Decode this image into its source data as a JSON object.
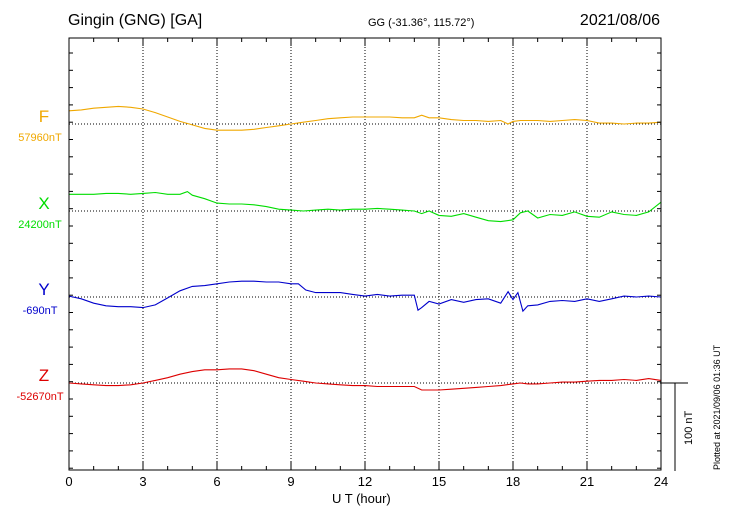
{
  "header": {
    "station": "Gingin (GNG)  [GA]",
    "coords": "GG (-31.36°, 115.72°)",
    "date": "2021/08/06"
  },
  "plotted_note": "Plotted at 2021/09/06 01:36 UT",
  "scale_label": "100 nT",
  "chart_data": {
    "type": "line",
    "xlabel": "U T (hour)",
    "xlim": [
      0,
      24
    ],
    "xticks": [
      0,
      3,
      6,
      9,
      12,
      15,
      18,
      21,
      24
    ],
    "grid": true,
    "scale_bar_nT": 100,
    "series": [
      {
        "name": "F",
        "baseline_label": "57960nT",
        "baseline_nT": 57960,
        "color": "#f0a800",
        "x": [
          0,
          0.5,
          1,
          1.5,
          2,
          2.5,
          3,
          3.5,
          4,
          4.5,
          5,
          5.5,
          6,
          6.5,
          7,
          7.5,
          8,
          8.5,
          9,
          9.5,
          10,
          10.5,
          11,
          11.5,
          12,
          12.5,
          13,
          13.5,
          14,
          14.3,
          14.6,
          15,
          15.5,
          16,
          16.5,
          17,
          17.5,
          17.8,
          18,
          18.3,
          18.6,
          19,
          19.5,
          20,
          20.5,
          21,
          21.5,
          22,
          22.5,
          23,
          23.5,
          24
        ],
        "offsets_nT": [
          15,
          16,
          18,
          19,
          20,
          19,
          17,
          13,
          8,
          3,
          -1,
          -5,
          -7,
          -7,
          -7,
          -6,
          -4,
          -2,
          0,
          2,
          4,
          6,
          7,
          8,
          8,
          8,
          8,
          7,
          7,
          10,
          7,
          7,
          5,
          4,
          4,
          3,
          4,
          0,
          3,
          4,
          4,
          4,
          3,
          4,
          5,
          4,
          1,
          1,
          0,
          1,
          1,
          2
        ]
      },
      {
        "name": "X",
        "baseline_label": "24200nT",
        "baseline_nT": 24200,
        "color": "#00dd00",
        "x": [
          0,
          0.5,
          1,
          1.5,
          2,
          2.5,
          3,
          3.5,
          4,
          4.5,
          4.8,
          5,
          5.5,
          6,
          6.5,
          7,
          7.5,
          8,
          8.5,
          9,
          9.5,
          10,
          10.5,
          11,
          11.5,
          12,
          12.5,
          13,
          13.5,
          14,
          14.3,
          14.6,
          15,
          15.5,
          16,
          16.5,
          17,
          17.5,
          18,
          18.3,
          18.6,
          19,
          19.5,
          20,
          20.5,
          21,
          21.5,
          22,
          22.5,
          23,
          23.5,
          24
        ],
        "offsets_nT": [
          19,
          19,
          19,
          20,
          20,
          19,
          20,
          21,
          19,
          19,
          22,
          18,
          14,
          9,
          8,
          8,
          7,
          5,
          2,
          1,
          0,
          1,
          2,
          1,
          2,
          2,
          3,
          2,
          1,
          0,
          -3,
          0,
          -5,
          -6,
          -3,
          -7,
          -11,
          -12,
          -10,
          -2,
          0,
          -8,
          -4,
          -5,
          -1,
          -6,
          -7,
          -1,
          -4,
          -5,
          -1,
          10
        ]
      },
      {
        "name": "Y",
        "baseline_label": "-690nT",
        "baseline_nT": -690,
        "color": "#0000cc",
        "x": [
          0,
          0.5,
          1,
          1.5,
          2,
          2.5,
          3,
          3.5,
          4,
          4.5,
          5,
          5.5,
          6,
          6.5,
          7,
          7.5,
          8,
          8.5,
          9,
          9.3,
          9.6,
          10,
          10.5,
          11,
          11.5,
          12,
          12.5,
          13,
          13.5,
          14,
          14.15,
          14.3,
          14.6,
          15,
          15.5,
          16,
          16.5,
          17,
          17.5,
          17.8,
          18,
          18.2,
          18.4,
          18.6,
          19,
          19.5,
          20,
          20.5,
          21,
          21.5,
          22,
          22.5,
          23,
          23.5,
          24
        ],
        "offsets_nT": [
          1,
          -2,
          -7,
          -10,
          -11,
          -11,
          -12,
          -9,
          -1,
          7,
          12,
          13,
          15,
          17,
          18,
          18,
          17,
          17,
          15,
          15,
          8,
          5,
          5,
          5,
          3,
          1,
          3,
          1,
          2,
          2,
          -15,
          -12,
          -5,
          -8,
          -3,
          -6,
          -3,
          -2,
          -7,
          6,
          -3,
          5,
          -16,
          -10,
          -9,
          -5,
          -4,
          -5,
          -2,
          -5,
          -2,
          1,
          0,
          1,
          0
        ]
      },
      {
        "name": "Z",
        "baseline_label": "-52670nT",
        "baseline_nT": -52670,
        "color": "#dd0000",
        "x": [
          0,
          0.5,
          1,
          1.5,
          2,
          2.5,
          3,
          3.5,
          4,
          4.5,
          5,
          5.5,
          6,
          6.5,
          7,
          7.5,
          8,
          8.5,
          9,
          9.5,
          10,
          10.5,
          11,
          11.5,
          12,
          12.5,
          13,
          13.5,
          14,
          14.3,
          14.6,
          15,
          15.5,
          16,
          16.5,
          17,
          17.5,
          18,
          18.3,
          18.6,
          19,
          19.5,
          20,
          20.5,
          21,
          21.5,
          22,
          22.5,
          23,
          23.5,
          24
        ],
        "offsets_nT": [
          0,
          -1,
          -2,
          -3,
          -3,
          -2,
          0,
          3,
          6,
          10,
          13,
          15,
          15,
          16,
          16,
          14,
          10,
          6,
          4,
          2,
          0,
          -1,
          -2,
          -3,
          -3,
          -4,
          -4,
          -4,
          -4,
          -8,
          -8,
          -8,
          -7,
          -6,
          -5,
          -4,
          -3,
          -1,
          0,
          -1,
          -1,
          0,
          1,
          1,
          2,
          3,
          3,
          4,
          3,
          5,
          3
        ]
      }
    ]
  }
}
